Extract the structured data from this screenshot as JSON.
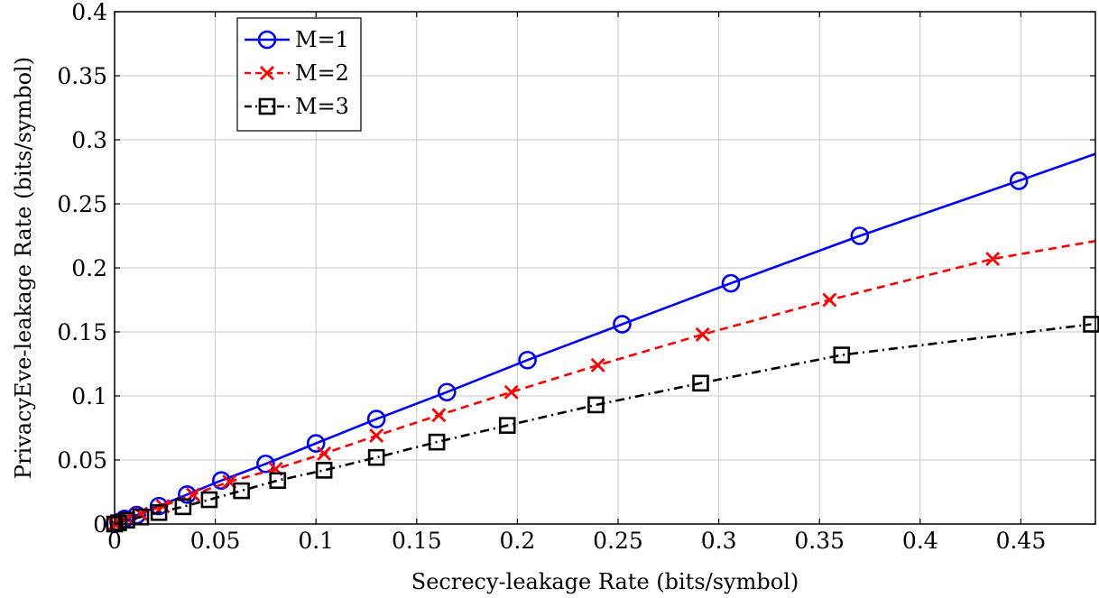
{
  "chart_data": {
    "type": "line",
    "title": "",
    "xlabel": "Secrecy-leakage Rate (bits/symbol)",
    "ylabel": "PrivacyEve-leakage Rate (bits/symbol)",
    "xlim": [
      0,
      0.487
    ],
    "ylim": [
      0,
      0.4
    ],
    "xticks": [
      0,
      0.05,
      0.1,
      0.15,
      0.2,
      0.25,
      0.3,
      0.35,
      0.4,
      0.45
    ],
    "xtick_labels": [
      "0",
      "0.05",
      "0.1",
      "0.15",
      "0.2",
      "0.25",
      "0.3",
      "0.35",
      "0.4",
      "0.45"
    ],
    "yticks": [
      0,
      0.05,
      0.1,
      0.15,
      0.2,
      0.25,
      0.3,
      0.35,
      0.4
    ],
    "ytick_labels": [
      "0",
      "0.05",
      "0.1",
      "0.15",
      "0.2",
      "0.25",
      "0.3",
      "0.35",
      "0.4"
    ],
    "grid": true,
    "legend_position": "top-left",
    "series": [
      {
        "name": "M=1",
        "color": "#0000ff",
        "line_style": "solid",
        "marker": "circle",
        "x": [
          0,
          0.002,
          0.005,
          0.011,
          0.022,
          0.036,
          0.053,
          0.075,
          0.1,
          0.13,
          0.165,
          0.205,
          0.252,
          0.306,
          0.37,
          0.449,
          0.487
        ],
        "y": [
          0,
          0.0015,
          0.004,
          0.007,
          0.014,
          0.023,
          0.034,
          0.047,
          0.063,
          0.082,
          0.103,
          0.128,
          0.156,
          0.188,
          0.225,
          0.268,
          0.289
        ]
      },
      {
        "name": "M=2",
        "color": "#ff0000",
        "line_style": "dashed",
        "marker": "x",
        "x": [
          0,
          0.002,
          0.006,
          0.013,
          0.024,
          0.039,
          0.057,
          0.08,
          0.104,
          0.13,
          0.161,
          0.197,
          0.24,
          0.292,
          0.355,
          0.436,
          0.487
        ],
        "y": [
          0,
          0.0015,
          0.0045,
          0.008,
          0.014,
          0.023,
          0.033,
          0.043,
          0.055,
          0.069,
          0.085,
          0.103,
          0.124,
          0.148,
          0.175,
          0.207,
          0.221
        ]
      },
      {
        "name": "M=3",
        "color": "#000000",
        "line_style": "dashdot",
        "marker": "square",
        "x": [
          0,
          0.002,
          0.006,
          0.013,
          0.022,
          0.034,
          0.047,
          0.063,
          0.081,
          0.104,
          0.13,
          0.16,
          0.195,
          0.239,
          0.291,
          0.361,
          0.485
        ],
        "y": [
          0,
          0.001,
          0.003,
          0.0055,
          0.009,
          0.0135,
          0.019,
          0.026,
          0.034,
          0.042,
          0.052,
          0.064,
          0.077,
          0.093,
          0.11,
          0.132,
          0.156
        ]
      }
    ]
  }
}
